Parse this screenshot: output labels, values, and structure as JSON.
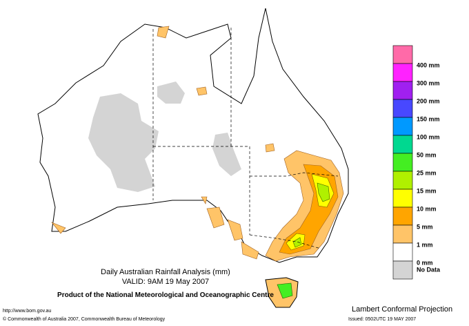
{
  "title": "Daily Australian Rainfall Analysis (mm)",
  "valid": "VALID: 9AM 19 May 2007",
  "product": "Product of the National Meteorological and Oceanographic Centre",
  "projection": "Lambert Conformal Projection",
  "url": "http://www.bom.gov.au",
  "copyright": "© Commonwealth of Australia 2007, Commonwealth Bureau of Meteorology",
  "issued": "Issued: 0502UTC 19 MAY 2007",
  "legend": {
    "colors": [
      "#ff6aa8",
      "#ff22ff",
      "#a020f0",
      "#4848ff",
      "#0099ff",
      "#00d890",
      "#44ee22",
      "#b0f000",
      "#ffff00",
      "#ffa500",
      "#ffc468",
      "#ffffff",
      "#d4d4d4"
    ],
    "labels": [
      "400 mm",
      "300 mm",
      "200 mm",
      "150 mm",
      "100 mm",
      "50 mm",
      "25 mm",
      "15 mm",
      "10 mm",
      "5 mm",
      "1 mm",
      "0 mm",
      "No Data"
    ]
  }
}
